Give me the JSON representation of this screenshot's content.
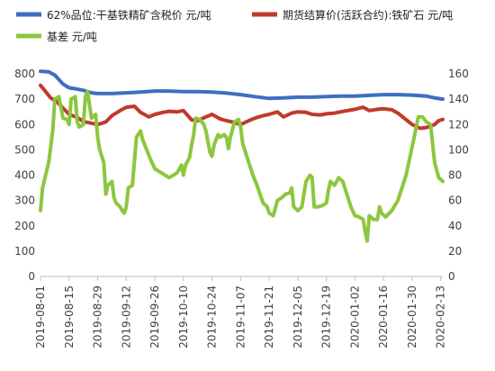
{
  "chart_data": {
    "type": "line",
    "title": "",
    "xlabel": "",
    "ylabel": "",
    "y_left": {
      "min": 0,
      "max": 800,
      "step": 100
    },
    "y_right": {
      "min": 0,
      "max": 160,
      "step": 20
    },
    "grid": false,
    "legend_position": "top",
    "x_ticks": [
      "2019-08-01",
      "2019-08-15",
      "2019-08-29",
      "2019-09-12",
      "2019-09-26",
      "2019-10-10",
      "2019-10-24",
      "2019-11-07",
      "2019-11-21",
      "2019-12-05",
      "2019-12-19",
      "2020-01-02",
      "2020-01-16",
      "2020-01-30",
      "2020-02-13"
    ],
    "left_ticks": [
      "0",
      "100",
      "200",
      "300",
      "400",
      "500",
      "600",
      "700",
      "800"
    ],
    "right_ticks": [
      "0",
      "20",
      "40",
      "60",
      "80",
      "100",
      "120",
      "140",
      "160"
    ],
    "series": [
      {
        "name": "62%品位:干基铁精矿含税价 元/吨",
        "color": "#3F6EC0",
        "axis": "left",
        "points": [
          [
            "2019-08-01",
            810
          ],
          [
            "2019-08-05",
            808
          ],
          [
            "2019-08-08",
            795
          ],
          [
            "2019-08-12",
            760
          ],
          [
            "2019-08-15",
            745
          ],
          [
            "2019-08-19",
            740
          ],
          [
            "2019-08-22",
            735
          ],
          [
            "2019-08-26",
            725
          ],
          [
            "2019-08-29",
            722
          ],
          [
            "2019-09-05",
            722
          ],
          [
            "2019-09-12",
            725
          ],
          [
            "2019-09-19",
            728
          ],
          [
            "2019-09-26",
            732
          ],
          [
            "2019-10-03",
            732
          ],
          [
            "2019-10-10",
            730
          ],
          [
            "2019-10-17",
            730
          ],
          [
            "2019-10-24",
            728
          ],
          [
            "2019-10-31",
            724
          ],
          [
            "2019-11-07",
            718
          ],
          [
            "2019-11-14",
            710
          ],
          [
            "2019-11-21",
            703
          ],
          [
            "2019-11-28",
            705
          ],
          [
            "2019-12-05",
            708
          ],
          [
            "2019-12-12",
            708
          ],
          [
            "2019-12-19",
            710
          ],
          [
            "2019-12-26",
            712
          ],
          [
            "2020-01-02",
            712
          ],
          [
            "2020-01-09",
            715
          ],
          [
            "2020-01-16",
            718
          ],
          [
            "2020-01-23",
            718
          ],
          [
            "2020-01-30",
            716
          ],
          [
            "2020-02-06",
            712
          ],
          [
            "2020-02-10",
            705
          ],
          [
            "2020-02-14",
            700
          ]
        ]
      },
      {
        "name": "期货结算价(活跃合约):铁矿石 元/吨",
        "color": "#C0392B",
        "axis": "left",
        "points": [
          [
            "2019-08-01",
            755
          ],
          [
            "2019-08-03",
            735
          ],
          [
            "2019-08-06",
            705
          ],
          [
            "2019-08-09",
            690
          ],
          [
            "2019-08-12",
            665
          ],
          [
            "2019-08-15",
            640
          ],
          [
            "2019-08-19",
            628
          ],
          [
            "2019-08-22",
            612
          ],
          [
            "2019-08-26",
            605
          ],
          [
            "2019-08-29",
            600
          ],
          [
            "2019-09-02",
            610
          ],
          [
            "2019-09-05",
            635
          ],
          [
            "2019-09-09",
            655
          ],
          [
            "2019-09-12",
            668
          ],
          [
            "2019-09-16",
            672
          ],
          [
            "2019-09-19",
            648
          ],
          [
            "2019-09-23",
            630
          ],
          [
            "2019-09-26",
            640
          ],
          [
            "2019-09-30",
            648
          ],
          [
            "2019-10-03",
            652
          ],
          [
            "2019-10-07",
            650
          ],
          [
            "2019-10-10",
            655
          ],
          [
            "2019-10-14",
            618
          ],
          [
            "2019-10-17",
            615
          ],
          [
            "2019-10-21",
            630
          ],
          [
            "2019-10-24",
            640
          ],
          [
            "2019-10-28",
            622
          ],
          [
            "2019-10-31",
            615
          ],
          [
            "2019-11-04",
            608
          ],
          [
            "2019-11-07",
            600
          ],
          [
            "2019-11-11",
            615
          ],
          [
            "2019-11-14",
            625
          ],
          [
            "2019-11-18",
            635
          ],
          [
            "2019-11-21",
            640
          ],
          [
            "2019-11-25",
            650
          ],
          [
            "2019-11-28",
            630
          ],
          [
            "2019-12-02",
            645
          ],
          [
            "2019-12-05",
            650
          ],
          [
            "2019-12-09",
            648
          ],
          [
            "2019-12-12",
            640
          ],
          [
            "2019-12-16",
            638
          ],
          [
            "2019-12-19",
            642
          ],
          [
            "2019-12-23",
            645
          ],
          [
            "2019-12-26",
            650
          ],
          [
            "2020-01-02",
            660
          ],
          [
            "2020-01-06",
            668
          ],
          [
            "2020-01-09",
            655
          ],
          [
            "2020-01-13",
            660
          ],
          [
            "2020-01-16",
            662
          ],
          [
            "2020-01-20",
            658
          ],
          [
            "2020-01-23",
            645
          ],
          [
            "2020-01-30",
            600
          ],
          [
            "2020-02-03",
            585
          ],
          [
            "2020-02-06",
            588
          ],
          [
            "2020-02-10",
            600
          ],
          [
            "2020-02-12",
            615
          ],
          [
            "2020-02-14",
            620
          ]
        ]
      },
      {
        "name": "基差 元/吨",
        "color": "#8DC63F",
        "axis": "right",
        "points": [
          [
            "2019-08-01",
            52
          ],
          [
            "2019-08-02",
            70
          ],
          [
            "2019-08-05",
            90
          ],
          [
            "2019-08-07",
            115
          ],
          [
            "2019-08-08",
            140
          ],
          [
            "2019-08-10",
            142
          ],
          [
            "2019-08-12",
            125
          ],
          [
            "2019-08-14",
            124
          ],
          [
            "2019-08-15",
            120
          ],
          [
            "2019-08-16",
            140
          ],
          [
            "2019-08-18",
            142
          ],
          [
            "2019-08-19",
            122
          ],
          [
            "2019-08-20",
            118
          ],
          [
            "2019-08-22",
            120
          ],
          [
            "2019-08-23",
            142
          ],
          [
            "2019-08-24",
            146
          ],
          [
            "2019-08-26",
            125
          ],
          [
            "2019-08-28",
            128
          ],
          [
            "2019-08-29",
            110
          ],
          [
            "2019-08-30",
            100
          ],
          [
            "2019-09-01",
            90
          ],
          [
            "2019-09-02",
            65
          ],
          [
            "2019-09-03",
            72
          ],
          [
            "2019-09-05",
            75
          ],
          [
            "2019-09-06",
            62
          ],
          [
            "2019-09-07",
            58
          ],
          [
            "2019-09-09",
            55
          ],
          [
            "2019-09-10",
            52
          ],
          [
            "2019-09-11",
            50
          ],
          [
            "2019-09-12",
            55
          ],
          [
            "2019-09-13",
            70
          ],
          [
            "2019-09-15",
            72
          ],
          [
            "2019-09-17",
            110
          ],
          [
            "2019-09-19",
            115
          ],
          [
            "2019-09-20",
            108
          ],
          [
            "2019-09-22",
            100
          ],
          [
            "2019-09-24",
            92
          ],
          [
            "2019-09-26",
            85
          ],
          [
            "2019-09-29",
            82
          ],
          [
            "2019-10-01",
            80
          ],
          [
            "2019-10-03",
            78
          ],
          [
            "2019-10-05",
            80
          ],
          [
            "2019-10-07",
            82
          ],
          [
            "2019-10-09",
            88
          ],
          [
            "2019-10-10",
            80
          ],
          [
            "2019-10-11",
            88
          ],
          [
            "2019-10-13",
            94
          ],
          [
            "2019-10-14",
            104
          ],
          [
            "2019-10-15",
            112
          ],
          [
            "2019-10-16",
            125
          ],
          [
            "2019-10-18",
            124
          ],
          [
            "2019-10-20",
            120
          ],
          [
            "2019-10-21",
            115
          ],
          [
            "2019-10-23",
            98
          ],
          [
            "2019-10-24",
            95
          ],
          [
            "2019-10-25",
            104
          ],
          [
            "2019-10-27",
            112
          ],
          [
            "2019-10-28",
            110
          ],
          [
            "2019-10-30",
            112
          ],
          [
            "2019-10-31",
            110
          ],
          [
            "2019-11-01",
            101
          ],
          [
            "2019-11-02",
            110
          ],
          [
            "2019-11-04",
            122
          ],
          [
            "2019-11-06",
            124
          ],
          [
            "2019-11-07",
            118
          ],
          [
            "2019-11-08",
            105
          ],
          [
            "2019-11-11",
            90
          ],
          [
            "2019-11-13",
            80
          ],
          [
            "2019-11-15",
            72
          ],
          [
            "2019-11-18",
            58
          ],
          [
            "2019-11-20",
            55
          ],
          [
            "2019-11-21",
            50
          ],
          [
            "2019-11-23",
            48
          ],
          [
            "2019-11-25",
            60
          ],
          [
            "2019-11-27",
            62
          ],
          [
            "2019-11-29",
            65
          ],
          [
            "2019-12-01",
            66
          ],
          [
            "2019-12-02",
            70
          ],
          [
            "2019-12-03",
            55
          ],
          [
            "2019-12-05",
            52
          ],
          [
            "2019-12-07",
            55
          ],
          [
            "2019-12-09",
            75
          ],
          [
            "2019-12-11",
            80
          ],
          [
            "2019-12-12",
            78
          ],
          [
            "2019-12-13",
            55
          ],
          [
            "2019-12-15",
            55
          ],
          [
            "2019-12-17",
            56
          ],
          [
            "2019-12-19",
            58
          ],
          [
            "2019-12-20",
            68
          ],
          [
            "2019-12-21",
            75
          ],
          [
            "2019-12-23",
            72
          ],
          [
            "2019-12-25",
            78
          ],
          [
            "2019-12-27",
            75
          ],
          [
            "2019-12-29",
            65
          ],
          [
            "2019-12-31",
            55
          ],
          [
            "2020-01-02",
            48
          ],
          [
            "2020-01-04",
            47
          ],
          [
            "2020-01-06",
            45
          ],
          [
            "2020-01-07",
            35
          ],
          [
            "2020-01-08",
            28
          ],
          [
            "2020-01-09",
            48
          ],
          [
            "2020-01-11",
            45
          ],
          [
            "2020-01-13",
            45
          ],
          [
            "2020-01-14",
            55
          ],
          [
            "2020-01-15",
            50
          ],
          [
            "2020-01-17",
            47
          ],
          [
            "2020-01-20",
            52
          ],
          [
            "2020-01-23",
            60
          ],
          [
            "2020-01-27",
            80
          ],
          [
            "2020-01-31",
            110
          ],
          [
            "2020-02-02",
            126
          ],
          [
            "2020-02-04",
            126
          ],
          [
            "2020-02-06",
            122
          ],
          [
            "2020-02-08",
            120
          ],
          [
            "2020-02-10",
            90
          ],
          [
            "2020-02-12",
            78
          ],
          [
            "2020-02-14",
            75
          ]
        ]
      }
    ]
  }
}
